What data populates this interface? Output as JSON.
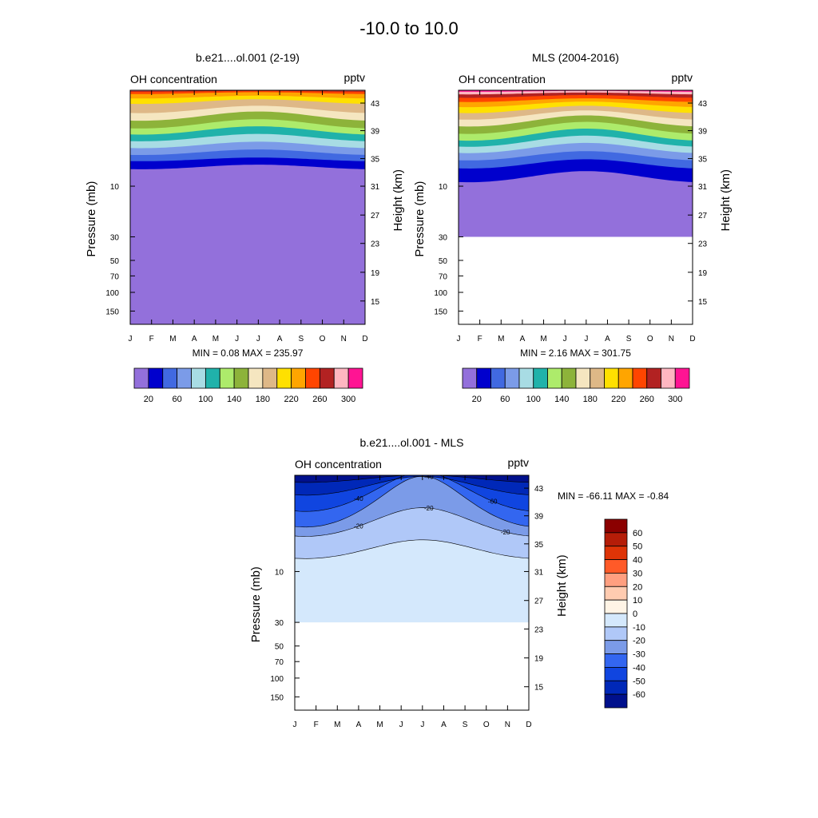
{
  "figure": {
    "title": "-10.0 to  10.0"
  },
  "months": [
    "J",
    "F",
    "M",
    "A",
    "M",
    "J",
    "J",
    "A",
    "S",
    "O",
    "N",
    "D"
  ],
  "chart_data": [
    {
      "type": "heatmap",
      "title": "b.e21....ol.001 (2-19)",
      "left_label": "OH concentration",
      "right_label": "pptv",
      "ylabel": "Pressure (mb)",
      "ylabel_right": "Height (km)",
      "pressure_ticks": [
        {
          "value": 150,
          "label": "150"
        },
        {
          "value": 100,
          "label": "100"
        },
        {
          "value": 70,
          "label": "70"
        },
        {
          "value": 50,
          "label": "50"
        },
        {
          "value": 30,
          "label": "30"
        },
        {
          "value": 10,
          "label": "10"
        }
      ],
      "height_ticks": [
        15,
        19,
        23,
        27,
        31,
        35,
        39,
        43
      ],
      "ylim_pressure_mb": [
        200,
        1.25
      ],
      "stats_text": "MIN =   0.08  MAX = 235.97",
      "data_bottom_mb": 200,
      "contour_levels": [
        20,
        40,
        60,
        80,
        100,
        120,
        140,
        160,
        180,
        200,
        220,
        240,
        260,
        280,
        300
      ],
      "band_base_mb": [
        6.6,
        5.6,
        4.8,
        4.1,
        3.5,
        3.0,
        2.6,
        2.2,
        1.9,
        1.6,
        1.45,
        1.33,
        1.28,
        1.26,
        1.25
      ],
      "band_seasonal_mb": [
        0.05,
        0.04,
        0.06,
        0.07,
        0.08,
        0.09,
        0.1,
        0.1,
        0.08,
        0.05,
        0.03,
        0.02,
        0.01,
        0.005,
        0.0
      ],
      "colorbar": {
        "labels": [
          "20",
          "60",
          "100",
          "140",
          "180",
          "220",
          "260",
          "300"
        ],
        "colors": [
          "#9370DB",
          "#0000CD",
          "#4169E1",
          "#7B9BE8",
          "#A8DCE4",
          "#20B2AA",
          "#ADEB6B",
          "#8DB33A",
          "#F5E6C0",
          "#DEB887",
          "#FFE000",
          "#FFA500",
          "#FF4500",
          "#B22222",
          "#FFB6C1",
          "#FF1493"
        ]
      }
    },
    {
      "type": "heatmap",
      "title": "MLS (2004-2016)",
      "left_label": "OH concentration",
      "right_label": "pptv",
      "ylabel": "Pressure (mb)",
      "ylabel_right": "Height (km)",
      "pressure_ticks": [
        {
          "value": 150,
          "label": "150"
        },
        {
          "value": 100,
          "label": "100"
        },
        {
          "value": 70,
          "label": "70"
        },
        {
          "value": 50,
          "label": "50"
        },
        {
          "value": 30,
          "label": "30"
        },
        {
          "value": 10,
          "label": "10"
        }
      ],
      "height_ticks": [
        15,
        19,
        23,
        27,
        31,
        35,
        39,
        43
      ],
      "ylim_pressure_mb": [
        200,
        1.25
      ],
      "stats_text": "MIN =   2.16  MAX = 301.75",
      "data_bottom_mb": 30,
      "contour_levels": [
        20,
        40,
        60,
        80,
        100,
        120,
        140,
        160,
        180,
        200,
        220,
        240,
        260,
        280,
        300
      ],
      "band_base_mb": [
        8.2,
        6.2,
        5.2,
        4.4,
        3.8,
        3.3,
        2.85,
        2.45,
        2.15,
        1.9,
        1.7,
        1.55,
        1.43,
        1.34,
        1.28
      ],
      "band_seasonal_mb": [
        0.12,
        0.1,
        0.1,
        0.11,
        0.12,
        0.13,
        0.13,
        0.12,
        0.1,
        0.08,
        0.06,
        0.04,
        0.03,
        0.02,
        0.01
      ],
      "colorbar": {
        "labels": [
          "20",
          "60",
          "100",
          "140",
          "180",
          "220",
          "260",
          "300"
        ],
        "colors": [
          "#9370DB",
          "#0000CD",
          "#4169E1",
          "#7B9BE8",
          "#A8DCE4",
          "#20B2AA",
          "#ADEB6B",
          "#8DB33A",
          "#F5E6C0",
          "#DEB887",
          "#FFE000",
          "#FFA500",
          "#FF4500",
          "#B22222",
          "#FFB6C1",
          "#FF1493"
        ]
      }
    },
    {
      "type": "heatmap",
      "title": "b.e21....ol.001 - MLS",
      "left_label": "OH concentration",
      "right_label": "pptv",
      "ylabel": "Pressure (mb)",
      "ylabel_right": "Height (km)",
      "pressure_ticks": [
        {
          "value": 150,
          "label": "150"
        },
        {
          "value": 100,
          "label": "100"
        },
        {
          "value": 70,
          "label": "70"
        },
        {
          "value": 50,
          "label": "50"
        },
        {
          "value": 30,
          "label": "30"
        },
        {
          "value": 10,
          "label": "10"
        }
      ],
      "height_ticks": [
        15,
        19,
        23,
        27,
        31,
        35,
        39,
        43
      ],
      "ylim_pressure_mb": [
        200,
        1.25
      ],
      "stats_text": "MIN = -66.11  MAX =  -0.84",
      "data_bottom_mb": 30,
      "contour_levels": [
        -10,
        -20,
        -30,
        -40,
        -50,
        -60
      ],
      "band_colors": [
        "#D4E8FC",
        "#B0C8F8",
        "#7B9BE8",
        "#3366F0",
        "#1045E0",
        "#0028B8",
        "#00108C"
      ],
      "band_base_mb": [
        6.3,
        3.6,
        2.55,
        1.95,
        1.6,
        1.35
      ],
      "band_seasonal_mb": [
        0.2,
        0.3,
        0.5,
        0.4,
        0.2,
        0.08
      ],
      "contour_labels": [
        {
          "text": "-20",
          "month": 3.0,
          "band": 1
        },
        {
          "text": "-20",
          "month": 6.3,
          "band": 1
        },
        {
          "text": "-20",
          "month": 9.9,
          "band": 1
        },
        {
          "text": "-40",
          "month": 3.0,
          "band": 3
        },
        {
          "text": "-40",
          "month": 6.3,
          "band": 4
        },
        {
          "text": "-60",
          "month": 9.3,
          "band": 3
        }
      ],
      "colorbar": {
        "labels": [
          "60",
          "50",
          "40",
          "30",
          "20",
          "10",
          "0",
          "-10",
          "-20",
          "-30",
          "-40",
          "-50",
          "-60"
        ],
        "colors": [
          "#8B0000",
          "#B51D08",
          "#DE3407",
          "#FF5A28",
          "#FF9F80",
          "#FFCBB0",
          "#FFF4E6",
          "#D4E8FC",
          "#B0C8F8",
          "#7B9BE8",
          "#3366F0",
          "#1045E0",
          "#0028B8",
          "#00108C"
        ]
      }
    }
  ]
}
